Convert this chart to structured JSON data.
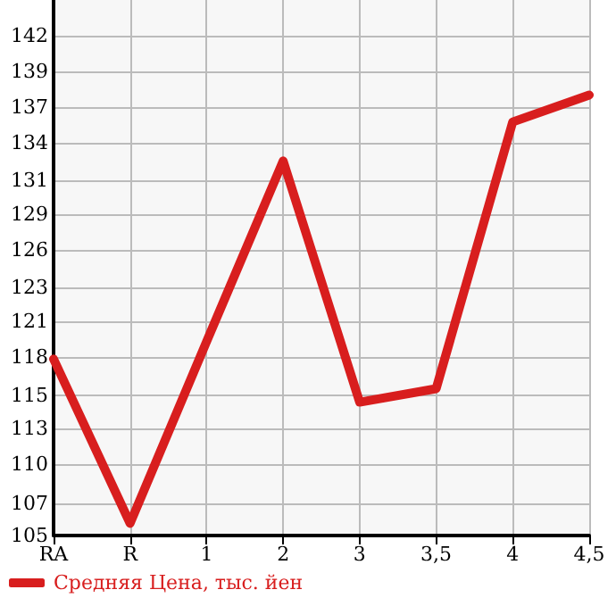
{
  "chart_data": {
    "type": "line",
    "categories": [
      "RA",
      "R",
      "1",
      "2",
      "3",
      "3,5",
      "4",
      "4,5"
    ],
    "series": [
      {
        "name": "Средняя Цена, тыс. йен",
        "color": "#d81e1e",
        "values": [
          118.1,
          105.9,
          119.4,
          132.8,
          114.9,
          115.9,
          135.7,
          137.7
        ]
      }
    ],
    "ylim": [
      105,
      144.75
    ],
    "yticks": [
      {
        "value": 105,
        "label": "105"
      },
      {
        "value": 107.4,
        "label": "107"
      },
      {
        "value": 110.3,
        "label": "110"
      },
      {
        "value": 112.95,
        "label": "113"
      },
      {
        "value": 115.4,
        "label": "115"
      },
      {
        "value": 118.25,
        "label": "118"
      },
      {
        "value": 120.9,
        "label": "121"
      },
      {
        "value": 123.4,
        "label": "123"
      },
      {
        "value": 126.2,
        "label": "126"
      },
      {
        "value": 128.85,
        "label": "129"
      },
      {
        "value": 131.4,
        "label": "131"
      },
      {
        "value": 134.15,
        "label": "134"
      },
      {
        "value": 136.8,
        "label": "137"
      },
      {
        "value": 139.45,
        "label": "139"
      },
      {
        "value": 142.1,
        "label": "142"
      }
    ],
    "grid": true,
    "legend": "bottom left",
    "marker": "none",
    "line_style": "solid"
  }
}
